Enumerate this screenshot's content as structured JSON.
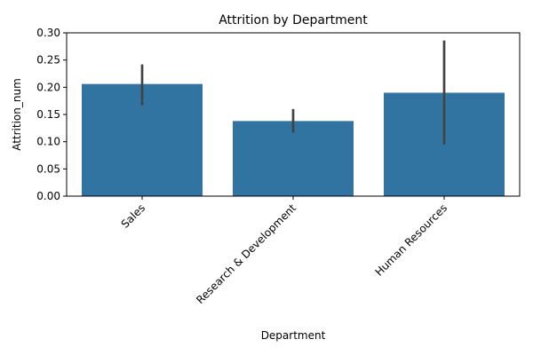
{
  "chart_data": {
    "type": "bar",
    "title": "Attrition by Department",
    "xlabel": "Department",
    "ylabel": "Attrition_num",
    "categories": [
      "Sales",
      "Research & Development",
      "Human Resources"
    ],
    "values": [
      0.206,
      0.138,
      0.19
    ],
    "error_low": [
      0.167,
      0.117,
      0.095
    ],
    "error_high": [
      0.242,
      0.16,
      0.286
    ],
    "ylim": [
      0,
      0.3
    ],
    "yticks": [
      0.0,
      0.05,
      0.1,
      0.15,
      0.2,
      0.25,
      0.3
    ],
    "ytick_labels": [
      "0.00",
      "0.05",
      "0.10",
      "0.15",
      "0.20",
      "0.25",
      "0.30"
    ],
    "x_tick_rotation": 45,
    "bar_color": "#3274a1",
    "error_color": "#424242",
    "grid": false,
    "legend": "none"
  }
}
